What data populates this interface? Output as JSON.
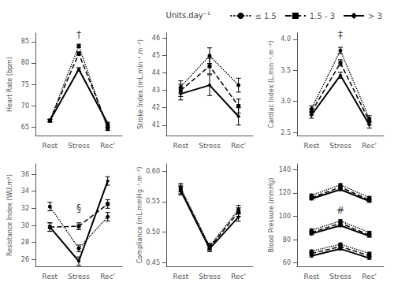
{
  "chart_data": [
    {
      "type": "line",
      "ylabel": "Heart Rate (bpm)",
      "categories": [
        "Rest",
        "Stress",
        "Rec'"
      ],
      "ylim": [
        63,
        87
      ],
      "yticks": [
        65,
        70,
        75,
        80,
        85
      ],
      "grid": false,
      "series": [
        {
          "name": "≤ 1.5",
          "color": "black",
          "marker": "circle",
          "line_style": "dotted",
          "values": [
            66.5,
            84.0,
            64.5
          ],
          "errors": [
            0.3,
            0.4,
            0.3
          ]
        },
        {
          "name": "1.5 - 3",
          "color": "black",
          "marker": "square",
          "line_style": "dashed",
          "values": [
            66.5,
            82.2,
            65.2
          ],
          "errors": [
            0.3,
            0.4,
            0.3
          ]
        },
        {
          "name": "> 3",
          "color": "black",
          "marker": "diamond",
          "line_style": "solid",
          "values": [
            66.5,
            78.5,
            65.8
          ],
          "errors": [
            0.3,
            0.4,
            0.3
          ]
        }
      ],
      "annotations": [
        {
          "text": "†",
          "x": "Stress",
          "y": 85.5
        }
      ]
    },
    {
      "type": "line",
      "ylabel": "Stroke Index (mL.min⁻¹.m⁻²)",
      "categories": [
        "Rest",
        "Stress",
        "Rec'"
      ],
      "ylim": [
        40.4,
        46.3
      ],
      "yticks": [
        41,
        42,
        43,
        44,
        45,
        46
      ],
      "grid": false,
      "series": [
        {
          "name": "≤ 1.5",
          "color": "black",
          "marker": "circle",
          "line_style": "dotted",
          "values": [
            43.2,
            45.0,
            43.3
          ],
          "errors": [
            0.35,
            0.45,
            0.4
          ]
        },
        {
          "name": "1.5 - 3",
          "color": "black",
          "marker": "square",
          "line_style": "dashed",
          "values": [
            43.0,
            44.4,
            42.1
          ],
          "errors": [
            0.35,
            0.45,
            0.4
          ]
        },
        {
          "name": "> 3",
          "color": "black",
          "marker": "diamond",
          "line_style": "solid",
          "values": [
            42.8,
            43.3,
            41.5
          ],
          "errors": [
            0.35,
            0.6,
            0.5
          ]
        }
      ]
    },
    {
      "type": "line",
      "ylabel": "Cardiac Index (L.min⁻¹.m⁻²)",
      "categories": [
        "Rest",
        "Stress",
        "Rec'"
      ],
      "ylim": [
        2.45,
        4.1
      ],
      "yticks": [
        2.5,
        {
          "value": 3.0,
          "label": "3.0"
        },
        3.5,
        {
          "value": 4.0,
          "label": "4.0"
        }
      ],
      "grid": false,
      "legend": "upper right",
      "legend_title": "Units.day⁻¹",
      "series": [
        {
          "name": "≤ 1.5",
          "color": "black",
          "marker": "circle",
          "line_style": "dotted",
          "values": [
            2.88,
            3.82,
            2.72
          ],
          "errors": [
            0.05,
            0.05,
            0.05
          ]
        },
        {
          "name": "1.5 - 3",
          "color": "black",
          "marker": "square",
          "line_style": "dashed",
          "values": [
            2.83,
            3.62,
            2.68
          ],
          "errors": [
            0.05,
            0.05,
            0.05
          ]
        },
        {
          "name": "> 3",
          "color": "black",
          "marker": "diamond",
          "line_style": "solid",
          "values": [
            2.78,
            3.42,
            2.62
          ],
          "errors": [
            0.05,
            0.05,
            0.05
          ]
        }
      ],
      "annotations": [
        {
          "text": "‡",
          "x": "Stress",
          "y": 4.0
        }
      ]
    },
    {
      "type": "line",
      "ylabel": "Resistance Index (WU.m²)",
      "categories": [
        "Rest",
        "Stress",
        "Rec'"
      ],
      "ylim": [
        25.2,
        37.2
      ],
      "yticks": [
        26,
        28,
        30,
        32,
        34,
        36
      ],
      "grid": false,
      "series": [
        {
          "name": "≤ 1.5",
          "color": "black",
          "marker": "circle",
          "line_style": "dotted",
          "values": [
            32.2,
            27.3,
            31.0
          ],
          "errors": [
            0.5,
            0.4,
            0.5
          ]
        },
        {
          "name": "1.5 - 3",
          "color": "black",
          "marker": "square",
          "line_style": "dashed",
          "values": [
            29.8,
            29.9,
            32.5
          ],
          "errors": [
            0.5,
            0.4,
            0.5
          ]
        },
        {
          "name": "> 3",
          "color": "black",
          "marker": "diamond",
          "line_style": "solid",
          "values": [
            29.8,
            25.8,
            35.2
          ],
          "errors": [
            0.5,
            0.5,
            0.5
          ]
        }
      ],
      "annotations": [
        {
          "text": "§",
          "x": "Stress",
          "y": 31.5
        }
      ]
    },
    {
      "type": "line",
      "ylabel": "Compliance (mL.mmHg⁻¹.m⁻²)",
      "categories": [
        "Rest",
        "Stress",
        "Rec'"
      ],
      "ylim": [
        0.444,
        0.612
      ],
      "yticks": [
        0.45,
        {
          "value": 0.5,
          "label": "0.50"
        },
        0.55,
        {
          "value": 0.6,
          "label": "0.60"
        }
      ],
      "grid": false,
      "series": [
        {
          "name": "≤ 1.5",
          "color": "black",
          "marker": "circle",
          "line_style": "dotted",
          "values": [
            0.573,
            0.477,
            0.537
          ],
          "errors": [
            0.007,
            0.005,
            0.007
          ]
        },
        {
          "name": "1.5 - 3",
          "color": "black",
          "marker": "square",
          "line_style": "dashed",
          "values": [
            0.57,
            0.475,
            0.533
          ],
          "errors": [
            0.007,
            0.005,
            0.007
          ]
        },
        {
          "name": "> 3",
          "color": "black",
          "marker": "diamond",
          "line_style": "solid",
          "values": [
            0.568,
            0.473,
            0.525
          ],
          "errors": [
            0.007,
            0.005,
            0.007
          ]
        }
      ]
    },
    {
      "type": "line",
      "ylabel": "Blood Pressure (mmHg)",
      "categories": [
        "Rest",
        "Stress",
        "Rec'"
      ],
      "ylim": [
        57,
        145
      ],
      "yticks": [
        60,
        80,
        100,
        120,
        140
      ],
      "grid": false,
      "series": [
        {
          "name": "≤ 1.5",
          "color": "black",
          "marker": "circle",
          "line_style": "dotted",
          "values": [
            118,
            127,
            116
          ],
          "errors": [
            1.0,
            1.0,
            1.0
          ]
        },
        {
          "name": "1.5 - 3",
          "color": "black",
          "marker": "square",
          "line_style": "dashed",
          "values": [
            116,
            125,
            114
          ],
          "errors": [
            1.0,
            1.0,
            1.0
          ]
        },
        {
          "name": "> 3",
          "color": "black",
          "marker": "diamond",
          "line_style": "solid",
          "values": [
            115,
            123,
            113
          ],
          "errors": [
            1.0,
            1.0,
            1.0
          ]
        },
        {
          "name": "≤ 1.5",
          "color": "black",
          "marker": "circle",
          "line_style": "dotted",
          "values": [
            88,
            96,
            86
          ],
          "errors": [
            1.0,
            1.0,
            1.0
          ]
        },
        {
          "name": "1.5 - 3",
          "color": "black",
          "marker": "square",
          "line_style": "dashed",
          "values": [
            86,
            94,
            84
          ],
          "errors": [
            1.0,
            1.0,
            1.0
          ]
        },
        {
          "name": "> 3",
          "color": "black",
          "marker": "diamond",
          "line_style": "solid",
          "values": [
            85,
            92,
            83
          ],
          "errors": [
            1.0,
            1.0,
            1.0
          ]
        },
        {
          "name": "≤ 1.5",
          "color": "black",
          "marker": "circle",
          "line_style": "dotted",
          "values": [
            70,
            76,
            68
          ],
          "errors": [
            1.0,
            1.0,
            1.0
          ]
        },
        {
          "name": "1.5 - 3",
          "color": "black",
          "marker": "square",
          "line_style": "dashed",
          "values": [
            68,
            74,
            66
          ],
          "errors": [
            1.0,
            1.0,
            1.0
          ]
        },
        {
          "name": "> 3",
          "color": "black",
          "marker": "diamond",
          "line_style": "solid",
          "values": [
            66,
            72,
            64
          ],
          "errors": [
            1.0,
            1.0,
            1.0
          ]
        }
      ],
      "annotations": [
        {
          "text": "#",
          "x": "Stress",
          "y": 101
        }
      ]
    }
  ]
}
